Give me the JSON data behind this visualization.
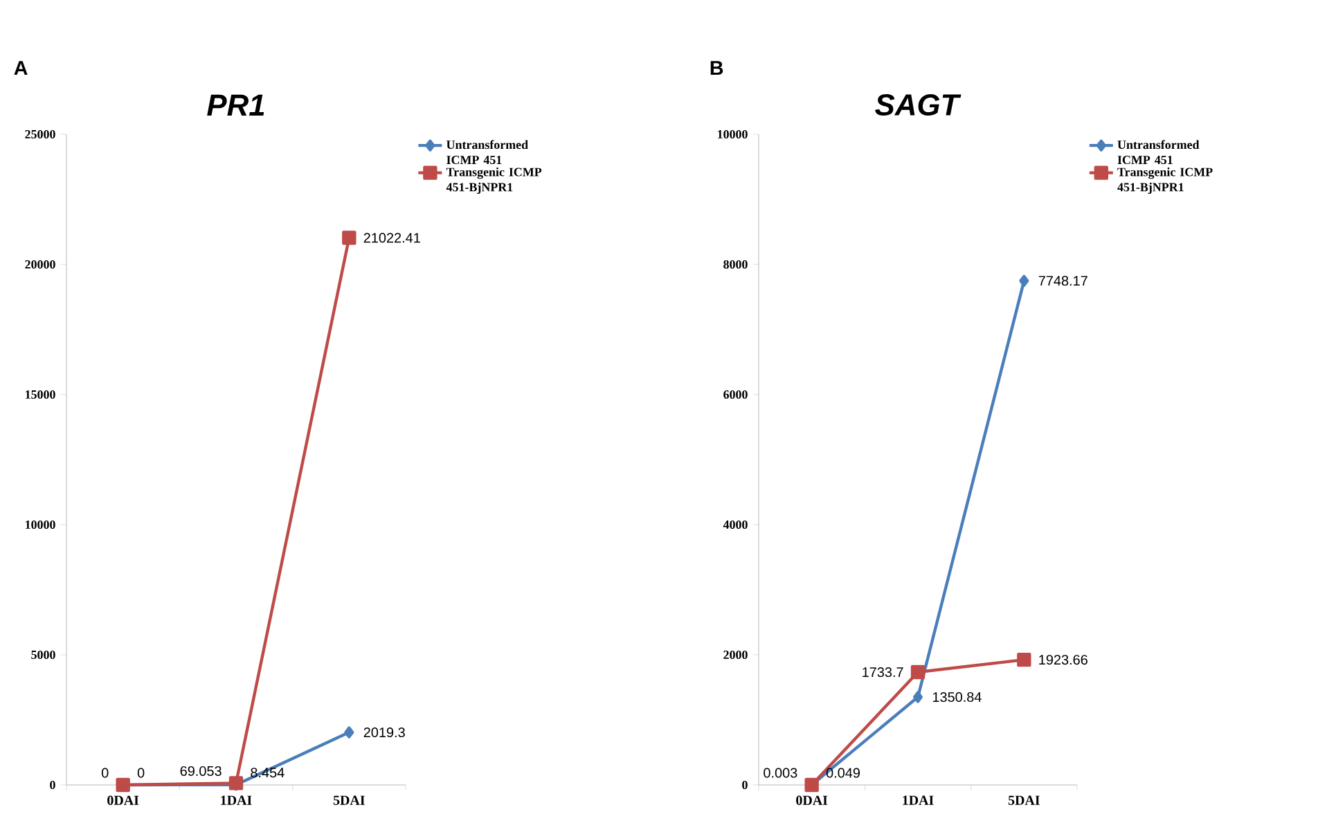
{
  "chart_data": [
    {
      "type": "line",
      "title": "*PR1*",
      "annotations": [
        "A"
      ],
      "categories": [
        "0DAI",
        "1DAI",
        "5DAI"
      ],
      "ylim": [
        0,
        25000
      ],
      "yticks": [
        0,
        5000,
        10000,
        15000,
        20000,
        25000
      ],
      "grid": false,
      "legend": "top right",
      "data_labels": true,
      "series": [
        {
          "name": "Untransformed ICMP 451",
          "color": "#4a7ebb",
          "marker": "diamond",
          "values": [
            0,
            8.454,
            2019.3
          ]
        },
        {
          "name": "Transgenic ICMP 451-BjNPR1",
          "color": "#be4b48",
          "marker": "square",
          "values": [
            0,
            69.053,
            21022.41
          ]
        }
      ]
    },
    {
      "type": "line",
      "title": "*SAGT*",
      "annotations": [
        "B"
      ],
      "categories": [
        "0DAI",
        "1DAI",
        "5DAI"
      ],
      "ylim": [
        0,
        10000
      ],
      "yticks": [
        0,
        2000,
        4000,
        6000,
        8000,
        10000
      ],
      "grid": false,
      "legend": "top right",
      "data_labels": true,
      "series": [
        {
          "name": "Untransformed ICMP 451",
          "color": "#4a7ebb",
          "marker": "diamond",
          "values": [
            0.049,
            1350.84,
            7748.17
          ]
        },
        {
          "name": "Transgenic ICMP 451-BjNPR1",
          "color": "#be4b48",
          "marker": "square",
          "values": [
            0.003,
            1733.7,
            1923.66
          ]
        }
      ]
    }
  ]
}
